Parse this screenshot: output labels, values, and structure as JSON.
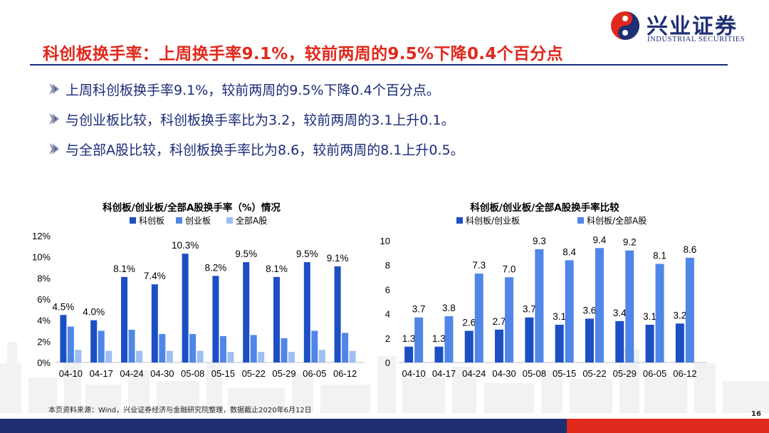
{
  "brand": {
    "name_cn": "兴业证券",
    "name_en": "INDUSTRIAL SECURITIES",
    "colors": {
      "navy": "#1f2f74",
      "red": "#e0281c"
    }
  },
  "slide": {
    "title": "科创板换手率：上周换手率9.1%，较前两周的9.5%下降0.4个百分点",
    "bullets": [
      "上周科创板换手率9.1%，较前两周的9.5%下降0.4个百分点。",
      "与创业板比较，科创板换手率比为3.2，较前两周的3.1上升0.1。",
      "与全部A股比较，科创板换手率比为8.6，较前两周的8.1上升0.5。"
    ],
    "source": "本页资料来源：Wind，兴业证券经济与金融研究院整理，数据截止2020年6月12日",
    "page_number": "16"
  },
  "chart_data": [
    {
      "type": "bar",
      "title": "科创板/创业板/全部A股换手率（%）情况",
      "categories": [
        "04-10",
        "04-17",
        "04-24",
        "04-30",
        "05-08",
        "05-15",
        "05-22",
        "05-29",
        "06-05",
        "06-12"
      ],
      "series": [
        {
          "name": "科创板",
          "color": "#1d4fc4",
          "values": [
            4.5,
            4.0,
            8.1,
            7.4,
            10.3,
            8.2,
            9.5,
            8.1,
            9.5,
            9.1
          ],
          "labels": [
            "4.5%",
            "4.0%",
            "8.1%",
            "7.4%",
            "10.3%",
            "8.2%",
            "9.5%",
            "8.1%",
            "9.5%",
            "9.1%"
          ]
        },
        {
          "name": "创业板",
          "color": "#4f86e8",
          "values": [
            3.4,
            3.0,
            3.1,
            2.7,
            2.7,
            2.5,
            2.6,
            2.3,
            3.0,
            2.8
          ]
        },
        {
          "name": "全部A股",
          "color": "#9dbff2",
          "values": [
            1.2,
            1.1,
            1.1,
            1.1,
            1.1,
            1.0,
            1.0,
            1.0,
            1.2,
            1.1
          ]
        }
      ],
      "y_ticks": [
        "0%",
        "2%",
        "4%",
        "6%",
        "8%",
        "10%",
        "12%"
      ],
      "ylim": [
        0,
        12
      ],
      "legend": "top"
    },
    {
      "type": "bar",
      "title": "科创板/创业板/全部A股换手率比较",
      "categories": [
        "04-10",
        "04-17",
        "04-24",
        "04-30",
        "05-08",
        "05-15",
        "05-22",
        "05-29",
        "06-05",
        "06-12"
      ],
      "series": [
        {
          "name": "科创板/创业板",
          "color": "#1d4fc4",
          "values": [
            1.3,
            1.3,
            2.6,
            2.7,
            3.7,
            3.1,
            3.6,
            3.4,
            3.1,
            3.2
          ],
          "labels": [
            "1.3",
            "1.3",
            "2.6",
            "2.7",
            "3.7",
            "3.1",
            "3.6",
            "3.4",
            "3.1",
            "3.2"
          ]
        },
        {
          "name": "科创板/全部A股",
          "color": "#4f86e8",
          "values": [
            3.7,
            3.8,
            7.3,
            7.0,
            9.3,
            8.4,
            9.4,
            9.2,
            8.1,
            8.6
          ],
          "labels": [
            "3.7",
            "3.8",
            "7.3",
            "7.0",
            "9.3",
            "8.4",
            "9.4",
            "9.2",
            "8.1",
            "8.6"
          ]
        }
      ],
      "y_ticks": [
        "0",
        "2",
        "4",
        "6",
        "8",
        "10"
      ],
      "ylim": [
        0,
        10
      ],
      "legend": "top"
    }
  ]
}
